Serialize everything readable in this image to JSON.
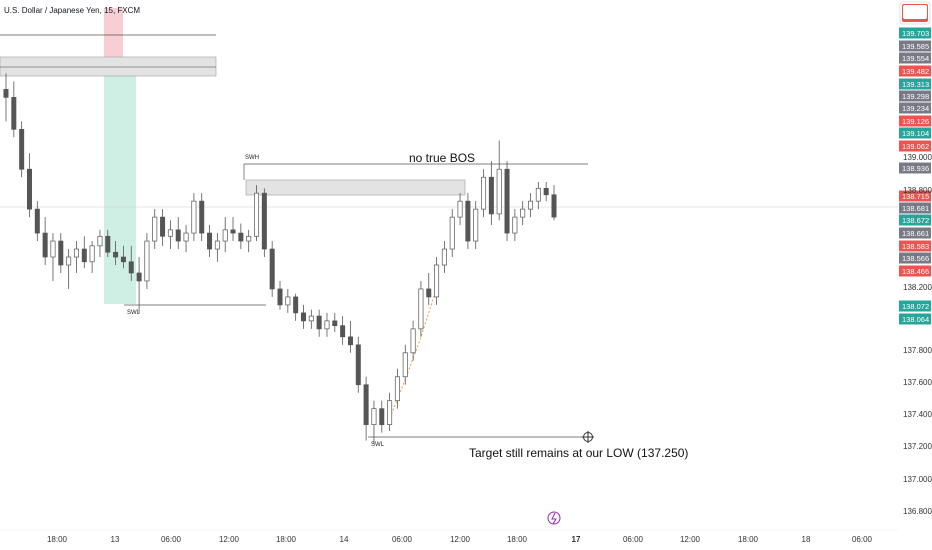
{
  "symbol_title": "U.S. Dollar / Japanese Yen, 15, FXCM",
  "chart_data": {
    "type": "candlestick",
    "title": "U.S. Dollar / Japanese Yen, 15, FXCM",
    "ylim": [
      136.74,
      140.06
    ],
    "y_ticks": [
      "139.000",
      "138.800",
      "138.200",
      "137.800",
      "137.600",
      "137.400",
      "137.200",
      "137.000",
      "136.800"
    ],
    "x_ticks": [
      "18:00",
      "13",
      "06:00",
      "12:00",
      "18:00",
      "14",
      "06:00",
      "12:00",
      "18:00",
      "17",
      "06:00",
      "12:00",
      "18:00",
      "18",
      "06:00"
    ],
    "price_labels": [
      {
        "text": "139.703",
        "color": "#26a69a"
      },
      {
        "text": "139.585",
        "color": "#787b86"
      },
      {
        "text": "139.554",
        "color": "#787b86"
      },
      {
        "text": "139.482",
        "color": "#ef5350"
      },
      {
        "text": "139.313",
        "color": "#26a69a"
      },
      {
        "text": "139.298",
        "color": "#787b86"
      },
      {
        "text": "139.234",
        "color": "#787b86"
      },
      {
        "text": "139.126",
        "color": "#ef5350"
      },
      {
        "text": "139.104",
        "color": "#26a69a"
      },
      {
        "text": "139.062",
        "color": "#ef5350"
      },
      {
        "text": "138.936",
        "color": "#787b86"
      },
      {
        "text": "138.715",
        "color": "#ef5350"
      },
      {
        "text": "138.681",
        "color": "#787b86"
      },
      {
        "text": "138.672",
        "color": "#26a69a"
      },
      {
        "text": "138.661",
        "color": "#787b86"
      },
      {
        "text": "138.583",
        "color": "#ef5350"
      },
      {
        "text": "138.566",
        "color": "#787b86"
      },
      {
        "text": "138.466",
        "color": "#ef5350"
      },
      {
        "text": "138.072",
        "color": "#26a69a"
      },
      {
        "text": "138.064",
        "color": "#26a69a"
      }
    ],
    "annotations": [
      {
        "text": "no true BOS"
      },
      {
        "text": "Target still remains at our LOW (137.250)"
      },
      {
        "text": "SWH"
      },
      {
        "text": "SWL"
      },
      {
        "text": "SWL"
      }
    ],
    "levels": {
      "swing_high": 138.936,
      "swing_low_1": 138.1,
      "swing_low_2": 137.25,
      "top_line": 139.62
    },
    "candles": [
      {
        "o": 139.5,
        "h": 139.6,
        "l": 139.3,
        "c": 139.45
      },
      {
        "o": 139.45,
        "h": 139.55,
        "l": 139.2,
        "c": 139.25
      },
      {
        "o": 139.25,
        "h": 139.3,
        "l": 138.95,
        "c": 139.0
      },
      {
        "o": 139.0,
        "h": 139.1,
        "l": 138.7,
        "c": 138.75
      },
      {
        "o": 138.75,
        "h": 138.8,
        "l": 138.55,
        "c": 138.6
      },
      {
        "o": 138.6,
        "h": 138.7,
        "l": 138.4,
        "c": 138.45
      },
      {
        "o": 138.45,
        "h": 138.6,
        "l": 138.3,
        "c": 138.55
      },
      {
        "o": 138.55,
        "h": 138.6,
        "l": 138.35,
        "c": 138.4
      },
      {
        "o": 138.4,
        "h": 138.5,
        "l": 138.25,
        "c": 138.45
      },
      {
        "o": 138.45,
        "h": 138.55,
        "l": 138.35,
        "c": 138.5
      },
      {
        "o": 138.5,
        "h": 138.58,
        "l": 138.38,
        "c": 138.42
      },
      {
        "o": 138.42,
        "h": 138.55,
        "l": 138.35,
        "c": 138.52
      },
      {
        "o": 138.52,
        "h": 138.62,
        "l": 138.45,
        "c": 138.58
      },
      {
        "o": 138.58,
        "h": 138.62,
        "l": 138.45,
        "c": 138.48
      },
      {
        "o": 138.48,
        "h": 138.55,
        "l": 138.4,
        "c": 138.45
      },
      {
        "o": 138.45,
        "h": 138.52,
        "l": 138.38,
        "c": 138.42
      },
      {
        "o": 138.42,
        "h": 138.52,
        "l": 138.3,
        "c": 138.35
      },
      {
        "o": 138.35,
        "h": 138.45,
        "l": 138.1,
        "c": 138.3
      },
      {
        "o": 138.3,
        "h": 138.6,
        "l": 138.25,
        "c": 138.55
      },
      {
        "o": 138.55,
        "h": 138.75,
        "l": 138.5,
        "c": 138.7
      },
      {
        "o": 138.7,
        "h": 138.75,
        "l": 138.52,
        "c": 138.58
      },
      {
        "o": 138.58,
        "h": 138.68,
        "l": 138.5,
        "c": 138.62
      },
      {
        "o": 138.62,
        "h": 138.7,
        "l": 138.5,
        "c": 138.55
      },
      {
        "o": 138.55,
        "h": 138.65,
        "l": 138.48,
        "c": 138.6
      },
      {
        "o": 138.6,
        "h": 138.85,
        "l": 138.55,
        "c": 138.8
      },
      {
        "o": 138.8,
        "h": 138.85,
        "l": 138.55,
        "c": 138.6
      },
      {
        "o": 138.6,
        "h": 138.65,
        "l": 138.45,
        "c": 138.5
      },
      {
        "o": 138.5,
        "h": 138.6,
        "l": 138.42,
        "c": 138.55
      },
      {
        "o": 138.55,
        "h": 138.7,
        "l": 138.48,
        "c": 138.62
      },
      {
        "o": 138.62,
        "h": 138.7,
        "l": 138.55,
        "c": 138.6
      },
      {
        "o": 138.6,
        "h": 138.66,
        "l": 138.5,
        "c": 138.55
      },
      {
        "o": 138.55,
        "h": 138.62,
        "l": 138.48,
        "c": 138.58
      },
      {
        "o": 138.58,
        "h": 138.9,
        "l": 138.55,
        "c": 138.85
      },
      {
        "o": 138.85,
        "h": 138.88,
        "l": 138.45,
        "c": 138.5
      },
      {
        "o": 138.5,
        "h": 138.55,
        "l": 138.2,
        "c": 138.25
      },
      {
        "o": 138.25,
        "h": 138.3,
        "l": 138.12,
        "c": 138.15
      },
      {
        "o": 138.15,
        "h": 138.25,
        "l": 138.1,
        "c": 138.2
      },
      {
        "o": 138.2,
        "h": 138.22,
        "l": 138.05,
        "c": 138.1
      },
      {
        "o": 138.1,
        "h": 138.15,
        "l": 138.0,
        "c": 138.05
      },
      {
        "o": 138.05,
        "h": 138.12,
        "l": 138.0,
        "c": 138.08
      },
      {
        "o": 138.08,
        "h": 138.12,
        "l": 137.95,
        "c": 138.0
      },
      {
        "o": 138.0,
        "h": 138.1,
        "l": 137.95,
        "c": 138.05
      },
      {
        "o": 138.05,
        "h": 138.1,
        "l": 137.98,
        "c": 138.02
      },
      {
        "o": 138.02,
        "h": 138.08,
        "l": 137.9,
        "c": 137.95
      },
      {
        "o": 137.95,
        "h": 138.05,
        "l": 137.85,
        "c": 137.9
      },
      {
        "o": 137.9,
        "h": 137.95,
        "l": 137.6,
        "c": 137.65
      },
      {
        "o": 137.65,
        "h": 137.7,
        "l": 137.3,
        "c": 137.4
      },
      {
        "o": 137.4,
        "h": 137.55,
        "l": 137.28,
        "c": 137.5
      },
      {
        "o": 137.5,
        "h": 137.55,
        "l": 137.35,
        "c": 137.4
      },
      {
        "o": 137.4,
        "h": 137.6,
        "l": 137.36,
        "c": 137.55
      },
      {
        "o": 137.55,
        "h": 137.75,
        "l": 137.5,
        "c": 137.7
      },
      {
        "o": 137.7,
        "h": 137.9,
        "l": 137.65,
        "c": 137.85
      },
      {
        "o": 137.85,
        "h": 138.05,
        "l": 137.8,
        "c": 138.0
      },
      {
        "o": 138.0,
        "h": 138.3,
        "l": 137.95,
        "c": 138.25
      },
      {
        "o": 138.25,
        "h": 138.35,
        "l": 138.15,
        "c": 138.2
      },
      {
        "o": 138.2,
        "h": 138.45,
        "l": 138.15,
        "c": 138.4
      },
      {
        "o": 138.4,
        "h": 138.55,
        "l": 138.35,
        "c": 138.5
      },
      {
        "o": 138.5,
        "h": 138.75,
        "l": 138.45,
        "c": 138.7
      },
      {
        "o": 138.7,
        "h": 138.85,
        "l": 138.65,
        "c": 138.8
      },
      {
        "o": 138.8,
        "h": 138.85,
        "l": 138.5,
        "c": 138.55
      },
      {
        "o": 138.55,
        "h": 138.8,
        "l": 138.5,
        "c": 138.75
      },
      {
        "o": 138.75,
        "h": 139.0,
        "l": 138.7,
        "c": 138.95
      },
      {
        "o": 138.95,
        "h": 139.05,
        "l": 138.65,
        "c": 138.72
      },
      {
        "o": 138.72,
        "h": 139.18,
        "l": 138.68,
        "c": 139.0
      },
      {
        "o": 139.0,
        "h": 139.05,
        "l": 138.55,
        "c": 138.6
      },
      {
        "o": 138.6,
        "h": 138.75,
        "l": 138.55,
        "c": 138.7
      },
      {
        "o": 138.7,
        "h": 138.8,
        "l": 138.65,
        "c": 138.75
      },
      {
        "o": 138.75,
        "h": 138.85,
        "l": 138.7,
        "c": 138.8
      },
      {
        "o": 138.8,
        "h": 138.92,
        "l": 138.75,
        "c": 138.88
      },
      {
        "o": 138.88,
        "h": 138.92,
        "l": 138.8,
        "c": 138.84
      },
      {
        "o": 138.84,
        "h": 138.9,
        "l": 138.68,
        "c": 138.7
      }
    ]
  }
}
